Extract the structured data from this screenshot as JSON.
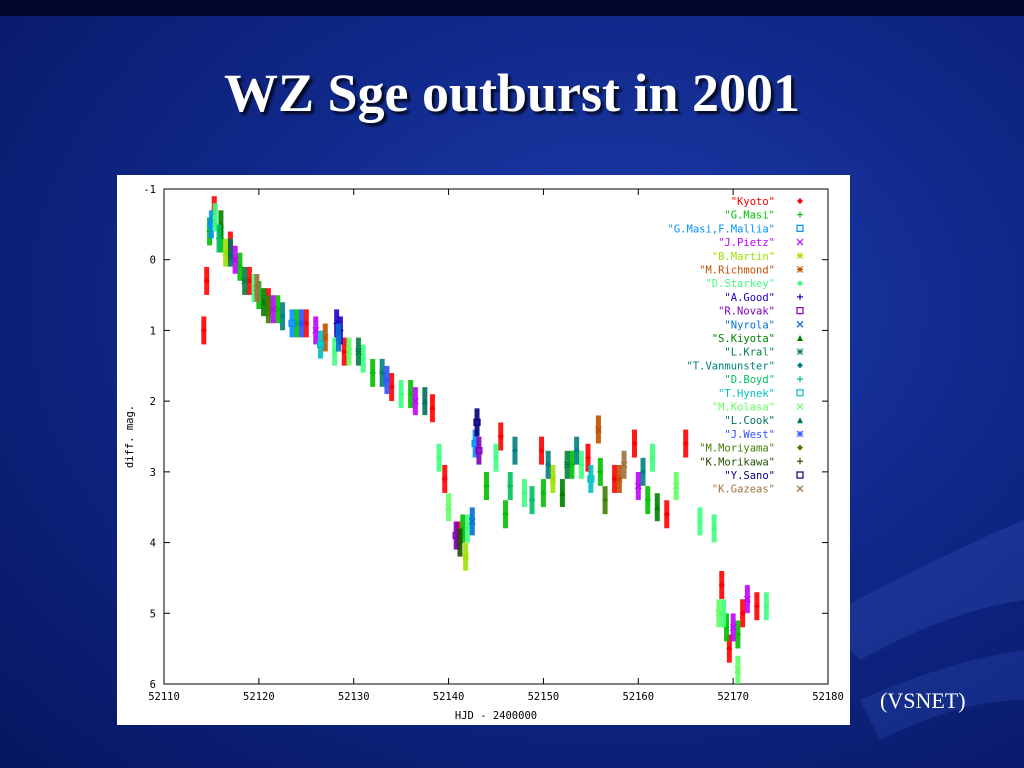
{
  "slide": {
    "title": "WZ Sge outburst in 2001",
    "credit": "(VSNET)"
  },
  "colors": {
    "background": "#10288a",
    "title_text": "#ffffff",
    "axis": "#000000"
  },
  "chart_data": {
    "type": "scatter",
    "title": "",
    "xlabel": "HJD - 2400000",
    "ylabel": "diff. mag.",
    "xlim": [
      52110,
      52180
    ],
    "ylim": [
      6,
      -1
    ],
    "y_inverted": true,
    "xticks": [
      52110,
      52120,
      52130,
      52140,
      52150,
      52160,
      52170,
      52180
    ],
    "yticks": [
      -1,
      0,
      1,
      2,
      3,
      4,
      5,
      6
    ],
    "legend_position": "top-right",
    "series": [
      {
        "name": "\"Kyoto\"",
        "color": "#ff0000",
        "marker": "◆",
        "points": [
          [
            52114.2,
            1.0
          ],
          [
            52114.5,
            0.3
          ],
          [
            52115.3,
            -0.7
          ],
          [
            52117.0,
            -0.2
          ],
          [
            52119.0,
            0.3
          ],
          [
            52121.0,
            0.6
          ],
          [
            52125.0,
            0.9
          ],
          [
            52129.0,
            1.3
          ],
          [
            52134.0,
            1.8
          ],
          [
            52138.3,
            2.1
          ],
          [
            52139.6,
            3.1
          ],
          [
            52141.0,
            3.9
          ],
          [
            52145.5,
            2.5
          ],
          [
            52149.8,
            2.7
          ],
          [
            52154.7,
            2.8
          ],
          [
            52157.5,
            3.1
          ],
          [
            52159.6,
            2.6
          ],
          [
            52163.0,
            3.6
          ],
          [
            52165.0,
            2.6
          ],
          [
            52168.8,
            4.6
          ],
          [
            52169.6,
            5.5
          ],
          [
            52171.0,
            5.0
          ],
          [
            52172.5,
            4.9
          ]
        ]
      },
      {
        "name": "\"G.Masi\"",
        "color": "#00c000",
        "marker": "+",
        "points": [
          [
            52114.8,
            -0.4
          ],
          [
            52116.0,
            -0.3
          ],
          [
            52118.0,
            0.1
          ],
          [
            52120.0,
            0.5
          ],
          [
            52122.0,
            0.7
          ],
          [
            52124.0,
            0.9
          ],
          [
            52132.0,
            1.6
          ],
          [
            52136.0,
            1.9
          ],
          [
            52141.5,
            3.8
          ],
          [
            52144.0,
            3.2
          ],
          [
            52146.0,
            3.6
          ],
          [
            52150.0,
            3.3
          ],
          [
            52153.0,
            2.9
          ],
          [
            52156.0,
            3.0
          ],
          [
            52161.0,
            3.4
          ],
          [
            52169.3,
            5.2
          ],
          [
            52170.5,
            5.3
          ]
        ]
      },
      {
        "name": "\"G.Masi,F.Mallia\"",
        "color": "#0090ff",
        "marker": "□",
        "points": [
          [
            52115.0,
            -0.5
          ],
          [
            52123.5,
            0.9
          ],
          [
            52142.8,
            2.6
          ]
        ]
      },
      {
        "name": "\"J.Pietz\"",
        "color": "#c000ff",
        "marker": "×",
        "points": [
          [
            52117.5,
            0.0
          ],
          [
            52121.5,
            0.7
          ],
          [
            52126.0,
            1.0
          ],
          [
            52136.5,
            2.0
          ],
          [
            52160.0,
            3.2
          ],
          [
            52170.0,
            5.2
          ],
          [
            52171.5,
            4.8
          ]
        ]
      },
      {
        "name": "\"B.Martin\"",
        "color": "#a0e000",
        "marker": "✳",
        "points": [
          [
            52116.5,
            -0.1
          ],
          [
            52141.8,
            4.2
          ],
          [
            52151.0,
            3.1
          ]
        ]
      },
      {
        "name": "\"M.Richmond\"",
        "color": "#c05000",
        "marker": "✱",
        "points": [
          [
            52127.0,
            1.1
          ],
          [
            52155.8,
            2.4
          ],
          [
            52158.0,
            3.1
          ]
        ]
      },
      {
        "name": "\"D.Starkey\"",
        "color": "#40ff80",
        "marker": "◆",
        "points": [
          [
            52115.4,
            -0.6
          ],
          [
            52119.5,
            0.4
          ],
          [
            52128.0,
            1.3
          ],
          [
            52131.0,
            1.4
          ],
          [
            52135.0,
            1.9
          ],
          [
            52139.0,
            2.8
          ],
          [
            52142.0,
            3.8
          ],
          [
            52145.0,
            2.8
          ],
          [
            52148.0,
            3.3
          ],
          [
            52154.0,
            2.9
          ],
          [
            52161.5,
            2.8
          ],
          [
            52166.5,
            3.7
          ],
          [
            52168.0,
            3.8
          ],
          [
            52169.0,
            5.0
          ],
          [
            52173.5,
            4.9
          ]
        ]
      },
      {
        "name": "\"A.Good\"",
        "color": "#2000c0",
        "marker": "+",
        "points": [
          [
            52128.2,
            0.9
          ],
          [
            52128.6,
            1.0
          ]
        ]
      },
      {
        "name": "\"R.Novak\"",
        "color": "#8000c0",
        "marker": "□",
        "points": [
          [
            52140.8,
            3.9
          ],
          [
            52143.2,
            2.7
          ]
        ]
      },
      {
        "name": "\"Nyrola\"",
        "color": "#0070d0",
        "marker": "×",
        "points": [
          [
            52128.4,
            1.1
          ],
          [
            52142.5,
            3.7
          ]
        ]
      },
      {
        "name": "\"S.Kiyota\"",
        "color": "#008000",
        "marker": "▲",
        "points": [
          [
            52116.0,
            -0.5
          ],
          [
            52120.5,
            0.6
          ],
          [
            52152.0,
            3.3
          ],
          [
            52162.0,
            3.5
          ]
        ]
      },
      {
        "name": "\"L.Kral\"",
        "color": "#008040",
        "marker": "✱",
        "points": [
          [
            52118.5,
            0.3
          ],
          [
            52130.5,
            1.3
          ],
          [
            52152.5,
            2.9
          ]
        ]
      },
      {
        "name": "\"T.Vanmunster\"",
        "color": "#008080",
        "marker": "◆",
        "points": [
          [
            52122.5,
            0.8
          ],
          [
            52133.0,
            1.6
          ],
          [
            52147.0,
            2.7
          ],
          [
            52150.5,
            2.9
          ],
          [
            52153.5,
            2.7
          ],
          [
            52160.5,
            3.0
          ]
        ]
      },
      {
        "name": "\"D.Boyd\"",
        "color": "#00c060",
        "marker": "+",
        "points": [
          [
            52115.8,
            -0.3
          ],
          [
            52146.5,
            3.2
          ],
          [
            52148.8,
            3.4
          ]
        ]
      },
      {
        "name": "\"T.Hynek\"",
        "color": "#00c0c0",
        "marker": "□",
        "points": [
          [
            52126.5,
            1.2
          ],
          [
            52155.0,
            3.1
          ]
        ]
      },
      {
        "name": "\"M.Kolasa\"",
        "color": "#60ff60",
        "marker": "×",
        "points": [
          [
            52129.5,
            1.3
          ],
          [
            52140.0,
            3.5
          ],
          [
            52164.0,
            3.2
          ],
          [
            52168.5,
            5.0
          ],
          [
            52170.5,
            5.8
          ]
        ]
      },
      {
        "name": "\"L.Cook\"",
        "color": "#007060",
        "marker": "▲",
        "points": [
          [
            52117.0,
            -0.1
          ],
          [
            52137.5,
            2.0
          ]
        ]
      },
      {
        "name": "\"J.West\"",
        "color": "#3050ff",
        "marker": "✱",
        "points": [
          [
            52124.5,
            0.9
          ],
          [
            52133.5,
            1.7
          ]
        ]
      },
      {
        "name": "\"M.Moriyama\"",
        "color": "#408000",
        "marker": "◆",
        "points": [
          [
            52121.0,
            0.7
          ],
          [
            52156.5,
            3.4
          ]
        ]
      },
      {
        "name": "\"K.Morikawa\"",
        "color": "#205000",
        "marker": "+",
        "points": [
          [
            52141.2,
            4.0
          ]
        ]
      },
      {
        "name": "\"Y.Sano\"",
        "color": "#000080",
        "marker": "□",
        "points": [
          [
            52143.0,
            2.3
          ]
        ]
      },
      {
        "name": "\"K.Gazeas\"",
        "color": "#a07040",
        "marker": "×",
        "points": [
          [
            52119.8,
            0.4
          ],
          [
            52158.5,
            2.9
          ]
        ]
      }
    ]
  }
}
